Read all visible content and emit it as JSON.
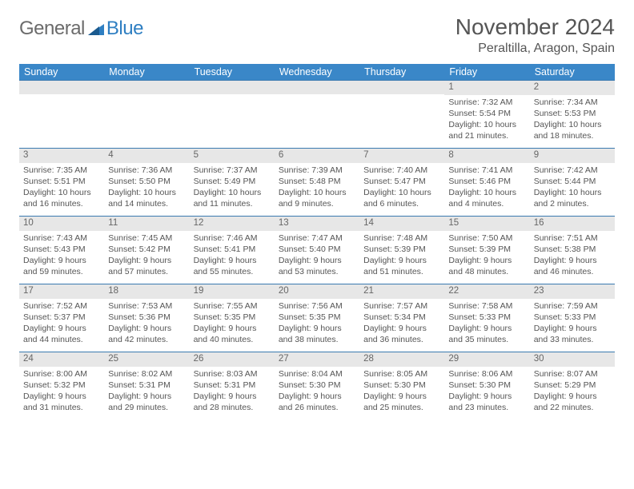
{
  "logo": {
    "word1": "General",
    "word2": "Blue"
  },
  "title": "November 2024",
  "location": "Peraltilla, Aragon, Spain",
  "colors": {
    "header_bg": "#3a87c8",
    "header_text": "#ffffff",
    "row_border": "#3a7ab0",
    "daynum_bg": "#e7e7e7",
    "text": "#555555",
    "logo_gray": "#6b6b6b",
    "logo_blue": "#2f7fc2"
  },
  "day_names": [
    "Sunday",
    "Monday",
    "Tuesday",
    "Wednesday",
    "Thursday",
    "Friday",
    "Saturday"
  ],
  "weeks": [
    [
      null,
      null,
      null,
      null,
      null,
      {
        "num": "1",
        "sunrise": "Sunrise: 7:32 AM",
        "sunset": "Sunset: 5:54 PM",
        "daylight": "Daylight: 10 hours and 21 minutes."
      },
      {
        "num": "2",
        "sunrise": "Sunrise: 7:34 AM",
        "sunset": "Sunset: 5:53 PM",
        "daylight": "Daylight: 10 hours and 18 minutes."
      }
    ],
    [
      {
        "num": "3",
        "sunrise": "Sunrise: 7:35 AM",
        "sunset": "Sunset: 5:51 PM",
        "daylight": "Daylight: 10 hours and 16 minutes."
      },
      {
        "num": "4",
        "sunrise": "Sunrise: 7:36 AM",
        "sunset": "Sunset: 5:50 PM",
        "daylight": "Daylight: 10 hours and 14 minutes."
      },
      {
        "num": "5",
        "sunrise": "Sunrise: 7:37 AM",
        "sunset": "Sunset: 5:49 PM",
        "daylight": "Daylight: 10 hours and 11 minutes."
      },
      {
        "num": "6",
        "sunrise": "Sunrise: 7:39 AM",
        "sunset": "Sunset: 5:48 PM",
        "daylight": "Daylight: 10 hours and 9 minutes."
      },
      {
        "num": "7",
        "sunrise": "Sunrise: 7:40 AM",
        "sunset": "Sunset: 5:47 PM",
        "daylight": "Daylight: 10 hours and 6 minutes."
      },
      {
        "num": "8",
        "sunrise": "Sunrise: 7:41 AM",
        "sunset": "Sunset: 5:46 PM",
        "daylight": "Daylight: 10 hours and 4 minutes."
      },
      {
        "num": "9",
        "sunrise": "Sunrise: 7:42 AM",
        "sunset": "Sunset: 5:44 PM",
        "daylight": "Daylight: 10 hours and 2 minutes."
      }
    ],
    [
      {
        "num": "10",
        "sunrise": "Sunrise: 7:43 AM",
        "sunset": "Sunset: 5:43 PM",
        "daylight": "Daylight: 9 hours and 59 minutes."
      },
      {
        "num": "11",
        "sunrise": "Sunrise: 7:45 AM",
        "sunset": "Sunset: 5:42 PM",
        "daylight": "Daylight: 9 hours and 57 minutes."
      },
      {
        "num": "12",
        "sunrise": "Sunrise: 7:46 AM",
        "sunset": "Sunset: 5:41 PM",
        "daylight": "Daylight: 9 hours and 55 minutes."
      },
      {
        "num": "13",
        "sunrise": "Sunrise: 7:47 AM",
        "sunset": "Sunset: 5:40 PM",
        "daylight": "Daylight: 9 hours and 53 minutes."
      },
      {
        "num": "14",
        "sunrise": "Sunrise: 7:48 AM",
        "sunset": "Sunset: 5:39 PM",
        "daylight": "Daylight: 9 hours and 51 minutes."
      },
      {
        "num": "15",
        "sunrise": "Sunrise: 7:50 AM",
        "sunset": "Sunset: 5:39 PM",
        "daylight": "Daylight: 9 hours and 48 minutes."
      },
      {
        "num": "16",
        "sunrise": "Sunrise: 7:51 AM",
        "sunset": "Sunset: 5:38 PM",
        "daylight": "Daylight: 9 hours and 46 minutes."
      }
    ],
    [
      {
        "num": "17",
        "sunrise": "Sunrise: 7:52 AM",
        "sunset": "Sunset: 5:37 PM",
        "daylight": "Daylight: 9 hours and 44 minutes."
      },
      {
        "num": "18",
        "sunrise": "Sunrise: 7:53 AM",
        "sunset": "Sunset: 5:36 PM",
        "daylight": "Daylight: 9 hours and 42 minutes."
      },
      {
        "num": "19",
        "sunrise": "Sunrise: 7:55 AM",
        "sunset": "Sunset: 5:35 PM",
        "daylight": "Daylight: 9 hours and 40 minutes."
      },
      {
        "num": "20",
        "sunrise": "Sunrise: 7:56 AM",
        "sunset": "Sunset: 5:35 PM",
        "daylight": "Daylight: 9 hours and 38 minutes."
      },
      {
        "num": "21",
        "sunrise": "Sunrise: 7:57 AM",
        "sunset": "Sunset: 5:34 PM",
        "daylight": "Daylight: 9 hours and 36 minutes."
      },
      {
        "num": "22",
        "sunrise": "Sunrise: 7:58 AM",
        "sunset": "Sunset: 5:33 PM",
        "daylight": "Daylight: 9 hours and 35 minutes."
      },
      {
        "num": "23",
        "sunrise": "Sunrise: 7:59 AM",
        "sunset": "Sunset: 5:33 PM",
        "daylight": "Daylight: 9 hours and 33 minutes."
      }
    ],
    [
      {
        "num": "24",
        "sunrise": "Sunrise: 8:00 AM",
        "sunset": "Sunset: 5:32 PM",
        "daylight": "Daylight: 9 hours and 31 minutes."
      },
      {
        "num": "25",
        "sunrise": "Sunrise: 8:02 AM",
        "sunset": "Sunset: 5:31 PM",
        "daylight": "Daylight: 9 hours and 29 minutes."
      },
      {
        "num": "26",
        "sunrise": "Sunrise: 8:03 AM",
        "sunset": "Sunset: 5:31 PM",
        "daylight": "Daylight: 9 hours and 28 minutes."
      },
      {
        "num": "27",
        "sunrise": "Sunrise: 8:04 AM",
        "sunset": "Sunset: 5:30 PM",
        "daylight": "Daylight: 9 hours and 26 minutes."
      },
      {
        "num": "28",
        "sunrise": "Sunrise: 8:05 AM",
        "sunset": "Sunset: 5:30 PM",
        "daylight": "Daylight: 9 hours and 25 minutes."
      },
      {
        "num": "29",
        "sunrise": "Sunrise: 8:06 AM",
        "sunset": "Sunset: 5:30 PM",
        "daylight": "Daylight: 9 hours and 23 minutes."
      },
      {
        "num": "30",
        "sunrise": "Sunrise: 8:07 AM",
        "sunset": "Sunset: 5:29 PM",
        "daylight": "Daylight: 9 hours and 22 minutes."
      }
    ]
  ]
}
